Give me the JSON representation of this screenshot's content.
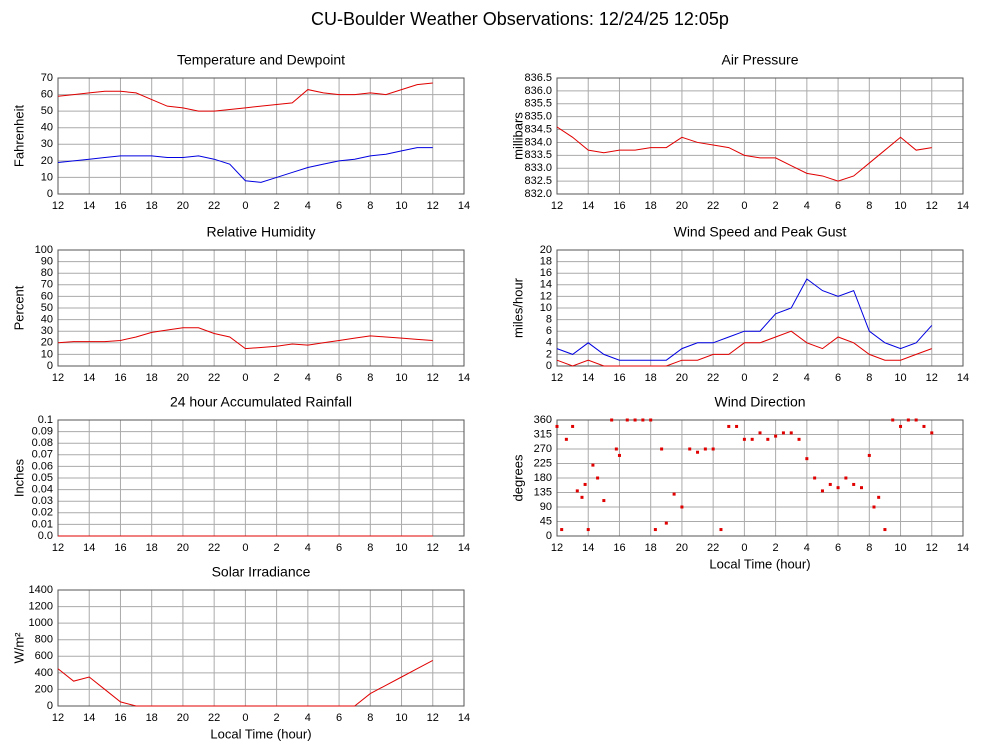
{
  "title": "CU-Boulder Weather Observations: 12/24/25 12:05p",
  "chart_data": [
    {
      "type": "line",
      "title": "Temperature and Dewpoint",
      "ylabel": "Fahrenheit",
      "x": [
        0,
        1,
        2,
        3,
        4,
        5,
        6,
        7,
        8,
        9,
        10,
        11,
        12,
        13,
        14,
        15,
        16,
        17,
        18,
        19,
        20,
        21,
        22,
        23,
        24
      ],
      "series": [
        {
          "name": "Temperature",
          "color": "#e00000",
          "values": [
            59,
            60,
            61,
            62,
            62,
            61,
            57,
            53,
            52,
            50,
            50,
            51,
            52,
            53,
            54,
            55,
            63,
            61,
            60,
            60,
            61,
            60,
            63,
            66,
            67
          ]
        },
        {
          "name": "Dewpoint",
          "color": "#0000e0",
          "values": [
            19,
            20,
            21,
            22,
            23,
            23,
            23,
            22,
            22,
            23,
            21,
            18,
            8,
            7,
            10,
            13,
            16,
            18,
            20,
            21,
            23,
            24,
            26,
            28,
            28
          ]
        }
      ],
      "xlim": [
        0,
        26
      ],
      "xticks": [
        {
          "value": 0,
          "label": "12"
        },
        {
          "value": 2,
          "label": "14"
        },
        {
          "value": 4,
          "label": "16"
        },
        {
          "value": 6,
          "label": "18"
        },
        {
          "value": 8,
          "label": "20"
        },
        {
          "value": 10,
          "label": "22"
        },
        {
          "value": 12,
          "label": "0"
        },
        {
          "value": 14,
          "label": "2"
        },
        {
          "value": 16,
          "label": "4"
        },
        {
          "value": 18,
          "label": "6"
        },
        {
          "value": 20,
          "label": "8"
        },
        {
          "value": 22,
          "label": "10"
        },
        {
          "value": 24,
          "label": "12"
        },
        {
          "value": 26,
          "label": "14"
        }
      ],
      "ylim": [
        0,
        70
      ],
      "yticks": [
        0,
        10,
        20,
        30,
        40,
        50,
        60,
        70
      ],
      "grid": true
    },
    {
      "type": "line",
      "title": "Air Pressure",
      "ylabel": "millibars",
      "x": [
        0,
        1,
        2,
        3,
        4,
        5,
        6,
        7,
        8,
        9,
        10,
        11,
        12,
        13,
        14,
        15,
        16,
        17,
        18,
        19,
        20,
        21,
        22,
        23,
        24
      ],
      "series": [
        {
          "name": "Pressure",
          "color": "#e00000",
          "values": [
            834.6,
            834.2,
            833.7,
            833.6,
            833.7,
            833.7,
            833.8,
            833.8,
            834.2,
            834.0,
            833.9,
            833.8,
            833.5,
            833.4,
            833.4,
            833.1,
            832.8,
            832.7,
            832.5,
            832.7,
            833.2,
            833.7,
            834.2,
            833.7,
            833.8
          ]
        }
      ],
      "xlim": [
        0,
        26
      ],
      "xticks": [
        {
          "value": 0,
          "label": "12"
        },
        {
          "value": 2,
          "label": "14"
        },
        {
          "value": 4,
          "label": "16"
        },
        {
          "value": 6,
          "label": "18"
        },
        {
          "value": 8,
          "label": "20"
        },
        {
          "value": 10,
          "label": "22"
        },
        {
          "value": 12,
          "label": "0"
        },
        {
          "value": 14,
          "label": "2"
        },
        {
          "value": 16,
          "label": "4"
        },
        {
          "value": 18,
          "label": "6"
        },
        {
          "value": 20,
          "label": "8"
        },
        {
          "value": 22,
          "label": "10"
        },
        {
          "value": 24,
          "label": "12"
        },
        {
          "value": 26,
          "label": "14"
        }
      ],
      "ylim": [
        832,
        836.5
      ],
      "yticks": [
        {
          "value": 832,
          "label": "832.0"
        },
        832.5,
        {
          "value": 833,
          "label": "833.0"
        },
        833.5,
        {
          "value": 834,
          "label": "834.0"
        },
        834.5,
        {
          "value": 835,
          "label": "835.0"
        },
        835.5,
        {
          "value": 836,
          "label": "836.0"
        },
        836.5
      ],
      "grid": true
    },
    {
      "type": "line",
      "title": "Relative Humidity",
      "ylabel": "Percent",
      "x": [
        0,
        1,
        2,
        3,
        4,
        5,
        6,
        7,
        8,
        9,
        10,
        11,
        12,
        13,
        14,
        15,
        16,
        17,
        18,
        19,
        20,
        21,
        22,
        23,
        24
      ],
      "series": [
        {
          "name": "Humidity",
          "color": "#e00000",
          "values": [
            20,
            21,
            21,
            21,
            22,
            25,
            29,
            31,
            33,
            33,
            28,
            25,
            15,
            16,
            17,
            19,
            18,
            20,
            22,
            24,
            26,
            25,
            24,
            23,
            22
          ]
        }
      ],
      "xlim": [
        0,
        26
      ],
      "xticks": [
        {
          "value": 0,
          "label": "12"
        },
        {
          "value": 2,
          "label": "14"
        },
        {
          "value": 4,
          "label": "16"
        },
        {
          "value": 6,
          "label": "18"
        },
        {
          "value": 8,
          "label": "20"
        },
        {
          "value": 10,
          "label": "22"
        },
        {
          "value": 12,
          "label": "0"
        },
        {
          "value": 14,
          "label": "2"
        },
        {
          "value": 16,
          "label": "4"
        },
        {
          "value": 18,
          "label": "6"
        },
        {
          "value": 20,
          "label": "8"
        },
        {
          "value": 22,
          "label": "10"
        },
        {
          "value": 24,
          "label": "12"
        },
        {
          "value": 26,
          "label": "14"
        }
      ],
      "ylim": [
        0,
        100
      ],
      "yticks": [
        0,
        10,
        20,
        30,
        40,
        50,
        60,
        70,
        80,
        90,
        100
      ],
      "grid": true
    },
    {
      "type": "line",
      "title": "Wind Speed and Peak Gust",
      "ylabel": "miles/hour",
      "x": [
        0,
        1,
        2,
        3,
        4,
        5,
        6,
        7,
        8,
        9,
        10,
        11,
        12,
        13,
        14,
        15,
        16,
        17,
        18,
        19,
        20,
        21,
        22,
        23,
        24
      ],
      "series": [
        {
          "name": "Peak Gust",
          "color": "#0000e0",
          "values": [
            3,
            2,
            4,
            2,
            1,
            1,
            1,
            1,
            3,
            4,
            4,
            5,
            6,
            6,
            9,
            10,
            15,
            13,
            12,
            13,
            6,
            4,
            3,
            4,
            7
          ]
        },
        {
          "name": "Wind Speed",
          "color": "#e00000",
          "values": [
            1,
            0,
            1,
            0,
            0,
            0,
            0,
            0,
            1,
            1,
            2,
            2,
            4,
            4,
            5,
            6,
            4,
            3,
            5,
            4,
            2,
            1,
            1,
            2,
            3
          ]
        }
      ],
      "xlim": [
        0,
        26
      ],
      "xticks": [
        {
          "value": 0,
          "label": "12"
        },
        {
          "value": 2,
          "label": "14"
        },
        {
          "value": 4,
          "label": "16"
        },
        {
          "value": 6,
          "label": "18"
        },
        {
          "value": 8,
          "label": "20"
        },
        {
          "value": 10,
          "label": "22"
        },
        {
          "value": 12,
          "label": "0"
        },
        {
          "value": 14,
          "label": "2"
        },
        {
          "value": 16,
          "label": "4"
        },
        {
          "value": 18,
          "label": "6"
        },
        {
          "value": 20,
          "label": "8"
        },
        {
          "value": 22,
          "label": "10"
        },
        {
          "value": 24,
          "label": "12"
        },
        {
          "value": 26,
          "label": "14"
        }
      ],
      "ylim": [
        0,
        20
      ],
      "yticks": [
        0,
        2,
        4,
        6,
        8,
        10,
        12,
        14,
        16,
        18,
        20
      ],
      "grid": true
    },
    {
      "type": "line",
      "title": "24 hour Accumulated Rainfall",
      "ylabel": "Inches",
      "x": [
        0,
        1,
        2,
        3,
        4,
        5,
        6,
        7,
        8,
        9,
        10,
        11,
        12,
        13,
        14,
        15,
        16,
        17,
        18,
        19,
        20,
        21,
        22,
        23,
        24
      ],
      "series": [
        {
          "name": "Rainfall",
          "color": "#e00000",
          "values": [
            0,
            0,
            0,
            0,
            0,
            0,
            0,
            0,
            0,
            0,
            0,
            0,
            0,
            0,
            0,
            0,
            0,
            0,
            0,
            0,
            0,
            0,
            0,
            0,
            0
          ]
        }
      ],
      "xlim": [
        0,
        26
      ],
      "xticks": [
        {
          "value": 0,
          "label": "12"
        },
        {
          "value": 2,
          "label": "14"
        },
        {
          "value": 4,
          "label": "16"
        },
        {
          "value": 6,
          "label": "18"
        },
        {
          "value": 8,
          "label": "20"
        },
        {
          "value": 10,
          "label": "22"
        },
        {
          "value": 12,
          "label": "0"
        },
        {
          "value": 14,
          "label": "2"
        },
        {
          "value": 16,
          "label": "4"
        },
        {
          "value": 18,
          "label": "6"
        },
        {
          "value": 20,
          "label": "8"
        },
        {
          "value": 22,
          "label": "10"
        },
        {
          "value": 24,
          "label": "12"
        },
        {
          "value": 26,
          "label": "14"
        }
      ],
      "ylim": [
        0,
        0.1
      ],
      "yticks": [
        {
          "value": 0,
          "label": "0.0"
        },
        0.01,
        0.02,
        0.03,
        0.04,
        0.05,
        0.06,
        0.07,
        0.08,
        0.09,
        0.1
      ],
      "grid": true
    },
    {
      "type": "scatter",
      "title": "Wind Direction",
      "ylabel": "degrees",
      "xlabel": "Local Time (hour)",
      "x": [
        0,
        0.3,
        0.6,
        1,
        1.3,
        1.6,
        1.8,
        2,
        2.3,
        2.6,
        3,
        3.5,
        3.8,
        4,
        4.5,
        5,
        5.5,
        6,
        6.3,
        6.7,
        7,
        7.5,
        8,
        8.5,
        9,
        9.5,
        10,
        10.5,
        11,
        11.5,
        12,
        12.5,
        13,
        13.5,
        14,
        14.5,
        15,
        15.5,
        16,
        16.5,
        17,
        17.5,
        18,
        18.5,
        19,
        19.5,
        20,
        20.3,
        20.6,
        21,
        21.5,
        22,
        22.5,
        23,
        23.5,
        24
      ],
      "series": [
        {
          "name": "Direction",
          "color": "#e00000",
          "values": [
            340,
            20,
            300,
            340,
            140,
            120,
            160,
            20,
            220,
            180,
            110,
            360,
            270,
            250,
            360,
            360,
            360,
            360,
            20,
            270,
            40,
            130,
            90,
            270,
            260,
            270,
            270,
            20,
            340,
            340,
            300,
            300,
            320,
            300,
            310,
            320,
            320,
            300,
            240,
            180,
            140,
            160,
            150,
            180,
            160,
            150,
            250,
            90,
            120,
            20,
            360,
            340,
            360,
            360,
            340,
            320
          ]
        }
      ],
      "xlim": [
        0,
        26
      ],
      "xticks": [
        {
          "value": 0,
          "label": "12"
        },
        {
          "value": 2,
          "label": "14"
        },
        {
          "value": 4,
          "label": "16"
        },
        {
          "value": 6,
          "label": "18"
        },
        {
          "value": 8,
          "label": "20"
        },
        {
          "value": 10,
          "label": "22"
        },
        {
          "value": 12,
          "label": "0"
        },
        {
          "value": 14,
          "label": "2"
        },
        {
          "value": 16,
          "label": "4"
        },
        {
          "value": 18,
          "label": "6"
        },
        {
          "value": 20,
          "label": "8"
        },
        {
          "value": 22,
          "label": "10"
        },
        {
          "value": 24,
          "label": "12"
        },
        {
          "value": 26,
          "label": "14"
        }
      ],
      "ylim": [
        0,
        360
      ],
      "yticks": [
        0,
        45,
        90,
        135,
        180,
        225,
        270,
        315,
        360
      ],
      "grid": true
    },
    {
      "type": "line",
      "title": "Solar Irradiance",
      "ylabel": "W/m²",
      "xlabel": "Local Time (hour)",
      "x": [
        0,
        1,
        2,
        3,
        4,
        5,
        6,
        7,
        8,
        9,
        10,
        11,
        12,
        13,
        14,
        15,
        16,
        17,
        18,
        19,
        20,
        21,
        22,
        23,
        24
      ],
      "series": [
        {
          "name": "Irradiance",
          "color": "#e00000",
          "values": [
            450,
            300,
            350,
            200,
            50,
            0,
            0,
            0,
            0,
            0,
            0,
            0,
            0,
            0,
            0,
            0,
            0,
            0,
            0,
            0,
            150,
            250,
            350,
            450,
            550
          ]
        }
      ],
      "xlim": [
        0,
        26
      ],
      "xticks": [
        {
          "value": 0,
          "label": "12"
        },
        {
          "value": 2,
          "label": "14"
        },
        {
          "value": 4,
          "label": "16"
        },
        {
          "value": 6,
          "label": "18"
        },
        {
          "value": 8,
          "label": "20"
        },
        {
          "value": 10,
          "label": "22"
        },
        {
          "value": 12,
          "label": "0"
        },
        {
          "value": 14,
          "label": "2"
        },
        {
          "value": 16,
          "label": "4"
        },
        {
          "value": 18,
          "label": "6"
        },
        {
          "value": 20,
          "label": "8"
        },
        {
          "value": 22,
          "label": "10"
        },
        {
          "value": 24,
          "label": "12"
        },
        {
          "value": 26,
          "label": "14"
        }
      ],
      "ylim": [
        0,
        1400
      ],
      "yticks": [
        0,
        200,
        400,
        600,
        800,
        1000,
        1200,
        1400
      ],
      "grid": true
    }
  ]
}
